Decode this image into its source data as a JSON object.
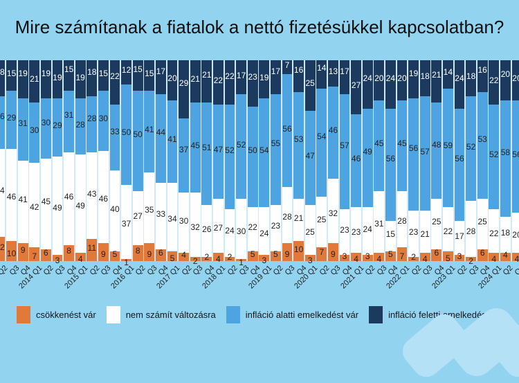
{
  "title": "Mire számítanak a fiatalok a nettó fizetésükkel kapcsolatban?",
  "colors": {
    "page_background": "#92d4f0",
    "bar_gap_background": "#cfe9f8",
    "decrease_orange": "#e0793a",
    "no_change_white": "#ffffff",
    "below_inflation_blue": "#4da4e1",
    "above_inflation_navy": "#1b3a5e",
    "watermark_blue": "#b5e1f7",
    "label_dark": "#222222",
    "label_light": "#ffffff"
  },
  "chart_data": {
    "type": "bar",
    "stacked": true,
    "stacked_to_100_percent": true,
    "title": "Mire számítanak a fiatalok a nettó fizetésükkel kapcsolatban?",
    "xlabel": "",
    "ylabel": "",
    "ylim": [
      0,
      100
    ],
    "grid": false,
    "legend_position": "bottom",
    "categories": [
      "Q2",
      "Q3",
      "Q4",
      "2014 Q1",
      "Q2",
      "Q3",
      "Q4",
      "2015 Q1",
      "Q2",
      "Q3",
      "Q4",
      "2016 Q1",
      "Q2",
      "Q3",
      "Q4",
      "2017 Q1",
      "Q2",
      "Q3",
      "Q4",
      "2018 Q1",
      "Q2",
      "Q3",
      "Q4",
      "2019 Q1",
      "Q2",
      "Q3",
      "Q4",
      "2020 Q1",
      "Q2",
      "Q3",
      "Q4",
      "2021 Q1",
      "Q2",
      "Q3",
      "Q4",
      "2022 Q1",
      "Q2",
      "Q3",
      "Q4",
      "2023 Q1",
      "Q2",
      "Q3",
      "Q4",
      "2024 Q1",
      "Q2",
      "Q3"
    ],
    "series": [
      {
        "name": "csökkenést vár",
        "color": "#e0793a",
        "text_color": "#222222",
        "values": [
          12,
          10,
          9,
          7,
          6,
          3,
          8,
          4,
          11,
          9,
          5,
          1,
          8,
          9,
          6,
          5,
          4,
          2,
          2,
          4,
          2,
          1,
          5,
          3,
          5,
          9,
          10,
          3,
          7,
          9,
          3,
          4,
          3,
          4,
          5,
          7,
          2,
          4,
          6,
          5,
          3,
          2,
          6,
          4,
          4,
          4
        ]
      },
      {
        "name": "nem számít változásra",
        "color": "#ffffff",
        "text_color": "#222222",
        "values": [
          44,
          46,
          41,
          42,
          45,
          49,
          46,
          49,
          43,
          46,
          40,
          37,
          27,
          35,
          33,
          34,
          30,
          32,
          26,
          27,
          24,
          30,
          22,
          24,
          23,
          28,
          21,
          25,
          25,
          32,
          23,
          23,
          24,
          31,
          15,
          28,
          23,
          21,
          25,
          22,
          17,
          28,
          25,
          22,
          18,
          20
        ]
      },
      {
        "name": "infláció alatti emelkedést vár",
        "color": "#4da4e1",
        "text_color": "#222222",
        "values": [
          26,
          29,
          31,
          30,
          30,
          29,
          31,
          28,
          28,
          30,
          33,
          50,
          50,
          41,
          44,
          41,
          37,
          45,
          51,
          47,
          52,
          52,
          50,
          54,
          55,
          56,
          53,
          47,
          54,
          46,
          57,
          46,
          49,
          45,
          56,
          45,
          56,
          57,
          48,
          59,
          56,
          52,
          53,
          52,
          58,
          56
        ]
      },
      {
        "name": "infláció feletti emelkedést vár",
        "color": "#1b3a5e",
        "text_color": "#ffffff",
        "values": [
          18,
          15,
          19,
          21,
          19,
          19,
          15,
          19,
          18,
          15,
          22,
          12,
          15,
          15,
          17,
          20,
          29,
          21,
          21,
          22,
          22,
          17,
          23,
          19,
          17,
          7,
          16,
          25,
          14,
          13,
          17,
          27,
          24,
          20,
          24,
          20,
          19,
          18,
          21,
          14,
          24,
          18,
          16,
          22,
          20,
          20
        ]
      }
    ]
  },
  "legend": {
    "items": [
      {
        "label": "csökkenést vár"
      },
      {
        "label": "nem számít változásra"
      },
      {
        "label": "infláció alatti emelkedést vár"
      },
      {
        "label": "infláció feletti emelkedést vár"
      }
    ]
  }
}
